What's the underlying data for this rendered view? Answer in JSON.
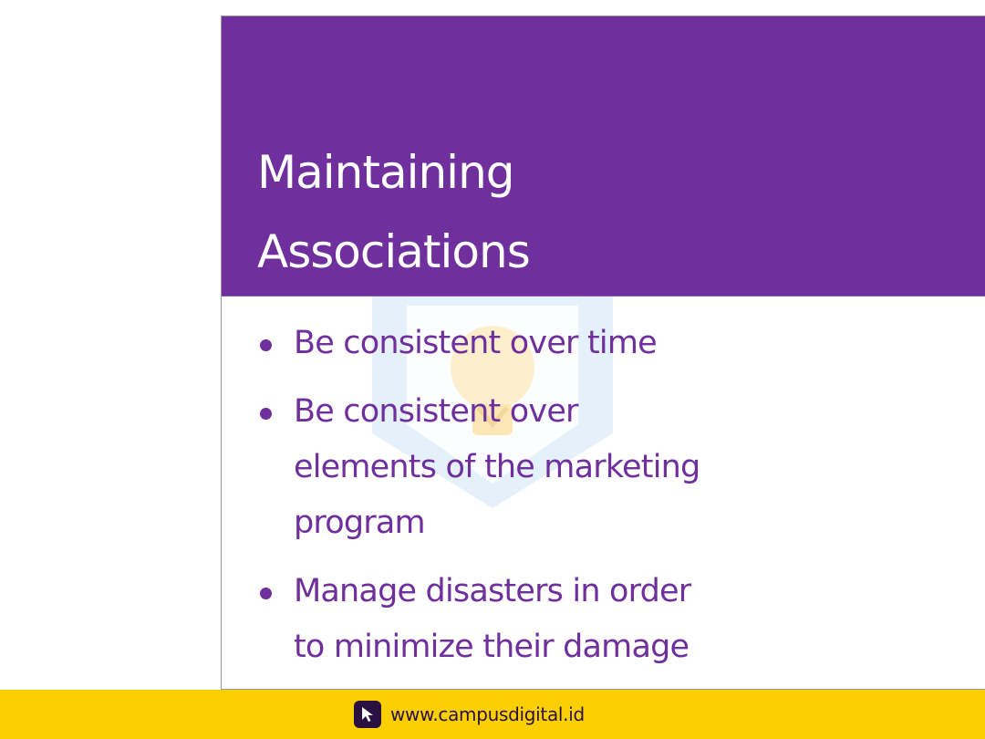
{
  "slide": {
    "title_line_1": "Maintaining",
    "title_line_2": "Associations",
    "bullets": [
      {
        "lines": [
          "Be consistent over time"
        ]
      },
      {
        "lines": [
          "Be consistent over",
          "elements of the marketing",
          "program"
        ]
      },
      {
        "lines": [
          "Manage disasters in order",
          "to minimize their damage"
        ]
      }
    ]
  },
  "footer": {
    "url": "www.campusdigital.id",
    "logo_icon": "cursor-icon"
  },
  "colors": {
    "title_band": "#6f2f9c",
    "bullet_text": "#6f2f9c",
    "footer_bar": "#fccf00",
    "footer_text": "#2a1240"
  }
}
